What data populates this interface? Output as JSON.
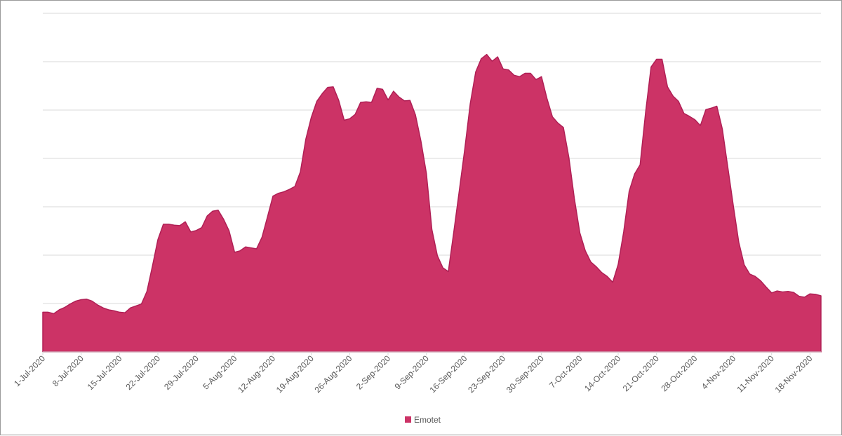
{
  "chart_data": {
    "type": "area",
    "title": "",
    "xlabel": "",
    "ylabel": "",
    "y_axis_labels_shown": false,
    "grid": true,
    "legend_position": "bottom",
    "color": "#cc3366",
    "ylim": [
      0,
      7
    ],
    "x_tick_labels": [
      "1-Jul-2020",
      "8-Jul-2020",
      "15-Jul-2020",
      "22-Jul-2020",
      "29-Jul-2020",
      "5-Aug-2020",
      "12-Aug-2020",
      "19-Aug-2020",
      "26-Aug-2020",
      "2-Sep-2020",
      "9-Sep-2020",
      "16-Sep-2020",
      "23-Sep-2020",
      "30-Sep-2020",
      "7-Oct-2020",
      "14-Oct-2020",
      "21-Oct-2020",
      "28-Oct-2020",
      "4-Nov-2020",
      "11-Nov-2020",
      "18-Nov-2020"
    ],
    "series": [
      {
        "name": "Emotet",
        "x": [
          "1-Jul-2020",
          "2-Jul-2020",
          "3-Jul-2020",
          "4-Jul-2020",
          "5-Jul-2020",
          "6-Jul-2020",
          "7-Jul-2020",
          "8-Jul-2020",
          "9-Jul-2020",
          "10-Jul-2020",
          "11-Jul-2020",
          "12-Jul-2020",
          "13-Jul-2020",
          "14-Jul-2020",
          "15-Jul-2020",
          "16-Jul-2020",
          "17-Jul-2020",
          "18-Jul-2020",
          "19-Jul-2020",
          "20-Jul-2020",
          "21-Jul-2020",
          "22-Jul-2020",
          "23-Jul-2020",
          "24-Jul-2020",
          "25-Jul-2020",
          "26-Jul-2020",
          "27-Jul-2020",
          "28-Jul-2020",
          "29-Jul-2020",
          "30-Jul-2020",
          "31-Jul-2020",
          "1-Aug-2020",
          "2-Aug-2020",
          "3-Aug-2020",
          "4-Aug-2020",
          "5-Aug-2020",
          "6-Aug-2020",
          "7-Aug-2020",
          "8-Aug-2020",
          "9-Aug-2020",
          "10-Aug-2020",
          "11-Aug-2020",
          "12-Aug-2020",
          "13-Aug-2020",
          "14-Aug-2020",
          "15-Aug-2020",
          "16-Aug-2020",
          "17-Aug-2020",
          "18-Aug-2020",
          "19-Aug-2020",
          "20-Aug-2020",
          "21-Aug-2020",
          "22-Aug-2020",
          "23-Aug-2020",
          "24-Aug-2020",
          "25-Aug-2020",
          "26-Aug-2020",
          "27-Aug-2020",
          "28-Aug-2020",
          "29-Aug-2020",
          "30-Aug-2020",
          "31-Aug-2020",
          "1-Sep-2020",
          "2-Sep-2020",
          "3-Sep-2020",
          "4-Sep-2020",
          "5-Sep-2020",
          "6-Sep-2020",
          "7-Sep-2020",
          "8-Sep-2020",
          "9-Sep-2020",
          "10-Sep-2020",
          "11-Sep-2020",
          "12-Sep-2020",
          "13-Sep-2020",
          "14-Sep-2020",
          "15-Sep-2020",
          "16-Sep-2020",
          "17-Sep-2020",
          "18-Sep-2020",
          "19-Sep-2020",
          "20-Sep-2020",
          "21-Sep-2020",
          "22-Sep-2020",
          "23-Sep-2020",
          "24-Sep-2020",
          "25-Sep-2020",
          "26-Sep-2020",
          "27-Sep-2020",
          "28-Sep-2020",
          "29-Sep-2020",
          "30-Sep-2020",
          "1-Oct-2020",
          "2-Oct-2020",
          "3-Oct-2020",
          "4-Oct-2020",
          "5-Oct-2020",
          "6-Oct-2020",
          "7-Oct-2020",
          "8-Oct-2020",
          "9-Oct-2020",
          "10-Oct-2020",
          "11-Oct-2020",
          "12-Oct-2020",
          "13-Oct-2020",
          "14-Oct-2020",
          "15-Oct-2020",
          "16-Oct-2020",
          "17-Oct-2020",
          "18-Oct-2020",
          "19-Oct-2020",
          "20-Oct-2020",
          "21-Oct-2020",
          "22-Oct-2020",
          "23-Oct-2020",
          "24-Oct-2020",
          "25-Oct-2020",
          "26-Oct-2020",
          "27-Oct-2020",
          "28-Oct-2020",
          "29-Oct-2020",
          "30-Oct-2020",
          "31-Oct-2020",
          "1-Nov-2020",
          "2-Nov-2020",
          "3-Nov-2020",
          "4-Nov-2020",
          "5-Nov-2020",
          "6-Nov-2020",
          "7-Nov-2020",
          "8-Nov-2020",
          "9-Nov-2020",
          "10-Nov-2020",
          "11-Nov-2020",
          "12-Nov-2020",
          "13-Nov-2020",
          "14-Nov-2020",
          "15-Nov-2020",
          "16-Nov-2020",
          "17-Nov-2020",
          "18-Nov-2020",
          "19-Nov-2020",
          "20-Nov-2020"
        ],
        "values": [
          0.82,
          0.82,
          0.79,
          0.87,
          0.92,
          0.99,
          1.05,
          1.08,
          1.09,
          1.05,
          0.97,
          0.91,
          0.87,
          0.85,
          0.82,
          0.81,
          0.91,
          0.95,
          0.99,
          1.25,
          1.77,
          2.32,
          2.64,
          2.64,
          2.62,
          2.61,
          2.69,
          2.48,
          2.51,
          2.57,
          2.81,
          2.91,
          2.93,
          2.74,
          2.5,
          2.06,
          2.09,
          2.17,
          2.15,
          2.13,
          2.37,
          2.79,
          3.22,
          3.28,
          3.31,
          3.36,
          3.42,
          3.72,
          4.4,
          4.85,
          5.18,
          5.34,
          5.47,
          5.48,
          5.2,
          4.79,
          4.82,
          4.91,
          5.16,
          5.17,
          5.16,
          5.45,
          5.43,
          5.21,
          5.39,
          5.27,
          5.19,
          5.2,
          4.9,
          4.36,
          3.69,
          2.53,
          1.99,
          1.74,
          1.66,
          2.48,
          3.33,
          4.19,
          5.13,
          5.79,
          6.06,
          6.15,
          6.01,
          6.1,
          5.85,
          5.83,
          5.72,
          5.69,
          5.76,
          5.76,
          5.63,
          5.69,
          5.24,
          4.86,
          4.73,
          4.64,
          4.02,
          3.17,
          2.46,
          2.09,
          1.86,
          1.76,
          1.64,
          1.56,
          1.44,
          1.81,
          2.48,
          3.32,
          3.68,
          3.87,
          4.95,
          5.89,
          6.05,
          6.05,
          5.48,
          5.29,
          5.18,
          4.93,
          4.87,
          4.8,
          4.68,
          5.01,
          5.04,
          5.08,
          4.61,
          3.82,
          3.03,
          2.27,
          1.8,
          1.61,
          1.56,
          1.47,
          1.34,
          1.22,
          1.26,
          1.24,
          1.25,
          1.23,
          1.15,
          1.13,
          1.2,
          1.19,
          1.16
        ]
      }
    ]
  }
}
